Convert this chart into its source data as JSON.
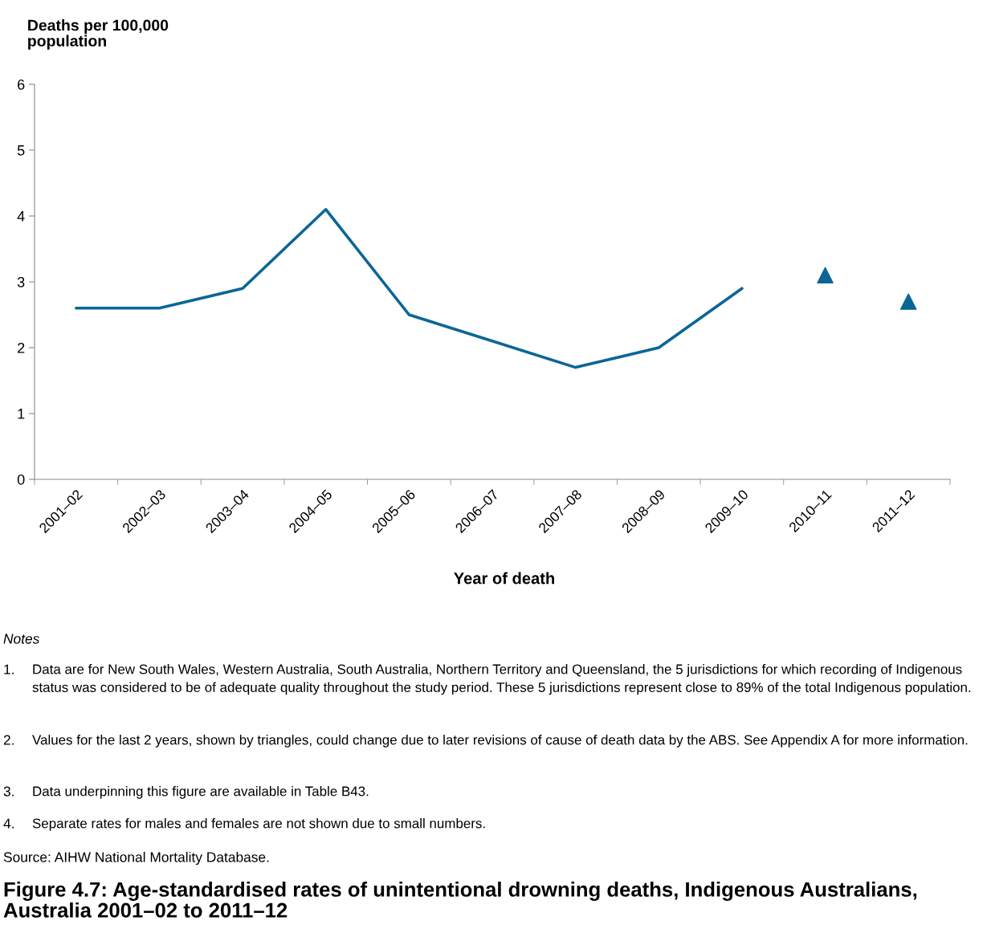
{
  "chart_data": {
    "type": "line",
    "title": "Figure 4.7: Age-standardised rates of unintentional drowning deaths, Indigenous Australians, Australia 2001–02 to 2011–12",
    "ylabel": "Deaths per 100,000 population",
    "xlabel": "Year of death",
    "categories": [
      "2001–02",
      "2002–03",
      "2003–04",
      "2004–05",
      "2005–06",
      "2006–07",
      "2007–08",
      "2008–09",
      "2009–10",
      "2010–11",
      "2011–12"
    ],
    "series": [
      {
        "color": "#0b6696",
        "marker": "none",
        "line_style": "solid",
        "values": [
          2.6,
          2.6,
          2.9,
          4.1,
          2.5,
          2.1,
          1.7,
          2.0,
          2.9,
          null,
          null
        ]
      },
      {
        "type": "scatter",
        "color": "#0b6696",
        "marker": "triangle",
        "values": [
          null,
          null,
          null,
          null,
          null,
          null,
          null,
          null,
          null,
          3.1,
          2.7
        ]
      }
    ],
    "ylim": [
      0,
      6
    ],
    "yticks": [
      0,
      1,
      2,
      3,
      4,
      5,
      6
    ],
    "grid": false,
    "legend": false,
    "annotations": [
      "Notes",
      "1. Data are for New South Wales, Western Australia, South Australia, Northern Territory and Queensland, the 5 jurisdictions for which recording of Indigenous status was considered to be of adequate quality throughout the study period. These 5 jurisdictions represent close to 89% of the total Indigenous population.",
      "2. Values for the last 2 years, shown by triangles, could change due to later revisions of cause of death data by the ABS. See Appendix A for more information.",
      "3. Data underpinning this figure are available in Table B43.",
      "4. Separate rates for males and females are not shown due to small numbers.",
      "Source: AIHW National Mortality Database."
    ]
  }
}
